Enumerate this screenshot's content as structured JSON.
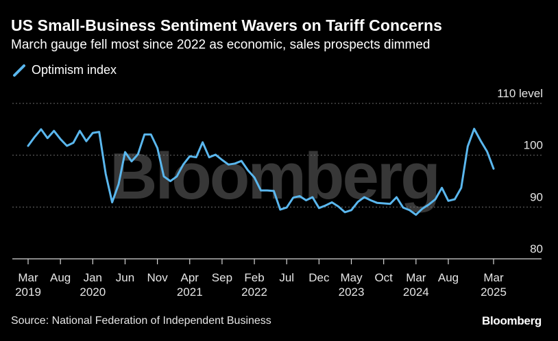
{
  "title": "US Small-Business Sentiment Wavers on Tariff Concerns",
  "subtitle": "March gauge fell most since 2022 as economic, sales prospects dimmed",
  "source": "Source: National Federation of Independent Business",
  "brand": "Bloomberg",
  "watermark": "Bloomberg",
  "colors": {
    "line": "#5ab7ee",
    "background": "#000000",
    "grid": "#6b6b6b"
  },
  "chart_data": {
    "type": "line",
    "title": "US Small-Business Sentiment Wavers on Tariff Concerns",
    "legend": [
      "Optimism index"
    ],
    "ylim": [
      80,
      110
    ],
    "yticks": [
      {
        "value": 110,
        "label": "110 level"
      },
      {
        "value": 100,
        "label": "100"
      },
      {
        "value": 90,
        "label": "90"
      },
      {
        "value": 80,
        "label": "80"
      }
    ],
    "xticks": [
      {
        "month_index": 0,
        "label": "Mar",
        "year": "2019"
      },
      {
        "month_index": 5,
        "label": "Aug",
        "year": ""
      },
      {
        "month_index": 10,
        "label": "Jan",
        "year": "2020"
      },
      {
        "month_index": 15,
        "label": "Jun",
        "year": ""
      },
      {
        "month_index": 20,
        "label": "Nov",
        "year": ""
      },
      {
        "month_index": 25,
        "label": "Apr",
        "year": "2021"
      },
      {
        "month_index": 30,
        "label": "Sep",
        "year": ""
      },
      {
        "month_index": 35,
        "label": "Feb",
        "year": "2022"
      },
      {
        "month_index": 40,
        "label": "Jul",
        "year": ""
      },
      {
        "month_index": 45,
        "label": "Dec",
        "year": ""
      },
      {
        "month_index": 50,
        "label": "May",
        "year": "2023"
      },
      {
        "month_index": 55,
        "label": "Oct",
        "year": ""
      },
      {
        "month_index": 60,
        "label": "Mar",
        "year": "2024"
      },
      {
        "month_index": 65,
        "label": "Aug",
        "year": ""
      },
      {
        "month_index": 72,
        "label": "Mar",
        "year": "2025"
      }
    ],
    "series": [
      {
        "name": "Optimism index",
        "start": "2019-03",
        "values": [
          101.8,
          103.5,
          105.0,
          103.3,
          104.7,
          103.1,
          101.8,
          102.4,
          104.7,
          102.7,
          104.3,
          104.5,
          96.4,
          90.9,
          94.4,
          100.6,
          98.8,
          100.2,
          104.0,
          104.0,
          101.4,
          95.9,
          95.0,
          95.9,
          98.2,
          99.8,
          99.6,
          102.5,
          99.6,
          100.1,
          99.1,
          98.2,
          98.4,
          98.9,
          97.1,
          95.7,
          93.2,
          93.2,
          93.1,
          89.5,
          89.9,
          91.8,
          92.1,
          91.3,
          91.9,
          89.8,
          90.3,
          90.9,
          90.1,
          89.0,
          89.4,
          91.0,
          91.9,
          91.3,
          90.8,
          90.7,
          90.6,
          91.9,
          89.9,
          89.4,
          88.5,
          89.7,
          90.5,
          91.5,
          93.7,
          91.2,
          91.5,
          93.7,
          101.7,
          105.1,
          102.8,
          100.7,
          97.4
        ]
      }
    ]
  }
}
